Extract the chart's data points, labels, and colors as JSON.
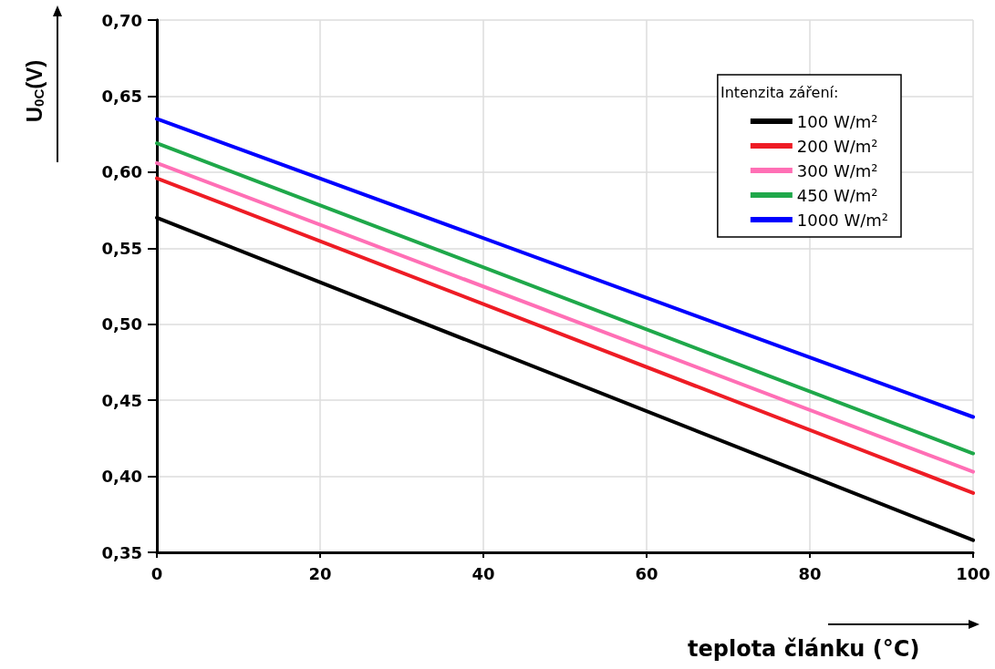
{
  "chart_data": {
    "type": "line",
    "xlabel": "teplota článku (°C)",
    "ylabel": "U$_{0C}$(V)",
    "legend_title": "Intenzita záření:",
    "x": [
      0,
      100
    ],
    "series": [
      {
        "name": "100 W/m²",
        "color": "#000000",
        "values": [
          0.57,
          0.358
        ]
      },
      {
        "name": "200 W/m²",
        "color": "#ee1c25",
        "values": [
          0.596,
          0.389
        ]
      },
      {
        "name": "300 W/m²",
        "color": "#ff6fb5",
        "values": [
          0.606,
          0.403
        ]
      },
      {
        "name": "450 W/m²",
        "color": "#1fa84a",
        "values": [
          0.619,
          0.415
        ]
      },
      {
        "name": "1000 W/m²",
        "color": "#0000ff",
        "values": [
          0.635,
          0.439
        ]
      }
    ],
    "xlim": [
      0,
      100
    ],
    "xticks": [
      0,
      20,
      40,
      60,
      80,
      100
    ],
    "ylim": [
      0.35,
      0.7
    ],
    "yticks": [
      {
        "value": 0.35,
        "label": "0,35"
      },
      {
        "value": 0.4,
        "label": "0,40"
      },
      {
        "value": 0.45,
        "label": "0,45"
      },
      {
        "value": 0.5,
        "label": "0,50"
      },
      {
        "value": 0.55,
        "label": "0,55"
      },
      {
        "value": 0.6,
        "label": "0,60"
      },
      {
        "value": 0.65,
        "label": "0,65"
      },
      {
        "value": 0.7,
        "label": "0,70"
      }
    ],
    "grid": true,
    "legend": "top right",
    "marker": "none",
    "line_style": "solid"
  }
}
